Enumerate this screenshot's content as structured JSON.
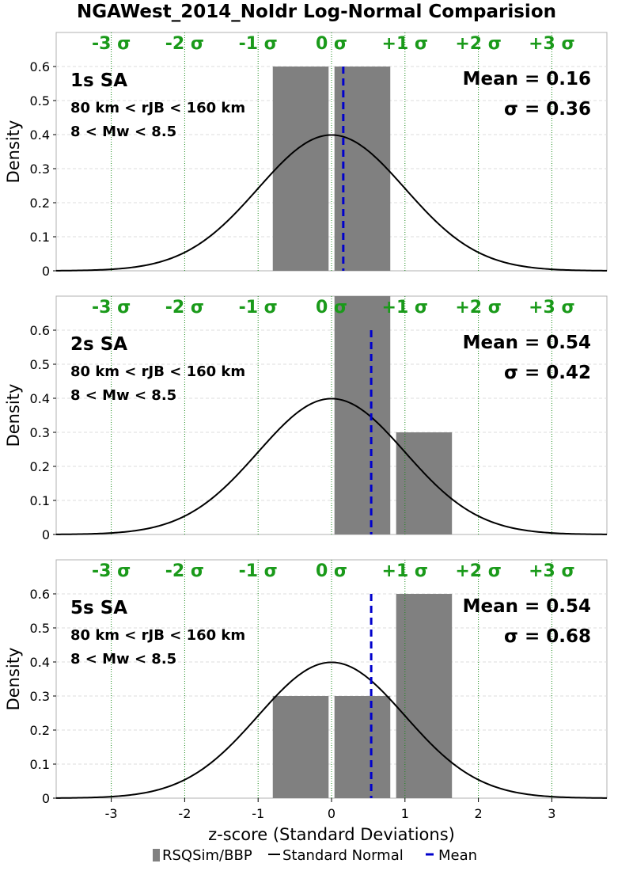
{
  "title": "NGAWest_2014_NoIdr Log-Normal Comparision",
  "chart_data": {
    "type": "bar",
    "title": "NGAWest_2014_NoIdr Log-Normal Comparision",
    "xlabel": "z-score (Standard Deviations)",
    "ylabel": "Density",
    "xlim": [
      -3.75,
      3.75
    ],
    "ylim": [
      0,
      0.7
    ],
    "x_ticks": [
      "-3",
      "-2",
      "-1",
      "0",
      "1",
      "2",
      "3"
    ],
    "y_ticks": [
      "0",
      "0.1",
      "0.2",
      "0.3",
      "0.4",
      "0.5",
      "0.6"
    ],
    "sigma_labels": [
      "-3 σ",
      "-2 σ",
      "-1 σ",
      "0 σ",
      "+1 σ",
      "+2 σ",
      "+3 σ"
    ],
    "sigma_positions": [
      -3,
      -2,
      -1,
      0,
      1,
      2,
      3
    ],
    "grid": true,
    "legend_position": "bottom",
    "legend": [
      "RSQSim/BBP",
      "Standard Normal",
      "Mean"
    ],
    "colors": {
      "bars": "#808080",
      "normal": "#000000",
      "mean": "#0000cc",
      "sigma": "#1a9a1a"
    },
    "panels": [
      {
        "period_label": "1s SA",
        "dist_label": "80 km < rJB < 160 km",
        "mag_label": "8 < Mw < 8.5",
        "mean_label": "Mean = 0.16",
        "sigma_label": "σ = 0.36",
        "mean": 0.16,
        "sigma": 0.36,
        "bins": [
          {
            "x0": -0.8,
            "x1": -0.04,
            "density": 0.6
          },
          {
            "x0": 0.04,
            "x1": 0.8,
            "density": 0.6
          }
        ]
      },
      {
        "period_label": "2s SA",
        "dist_label": "80 km < rJB < 160 km",
        "mag_label": "8 < Mw < 8.5",
        "mean_label": "Mean = 0.54",
        "sigma_label": "σ = 0.42",
        "mean": 0.54,
        "sigma": 0.42,
        "bins": [
          {
            "x0": 0.04,
            "x1": 0.8,
            "density": 0.7
          },
          {
            "x0": 0.88,
            "x1": 1.64,
            "density": 0.3
          }
        ]
      },
      {
        "period_label": "5s SA",
        "dist_label": "80 km < rJB < 160 km",
        "mag_label": "8 < Mw < 8.5",
        "mean_label": "Mean = 0.54",
        "sigma_label": "σ = 0.68",
        "mean": 0.54,
        "sigma": 0.68,
        "bins": [
          {
            "x0": -0.8,
            "x1": -0.04,
            "density": 0.3
          },
          {
            "x0": 0.04,
            "x1": 0.8,
            "density": 0.3
          },
          {
            "x0": 0.88,
            "x1": 1.64,
            "density": 0.6
          }
        ]
      }
    ]
  }
}
